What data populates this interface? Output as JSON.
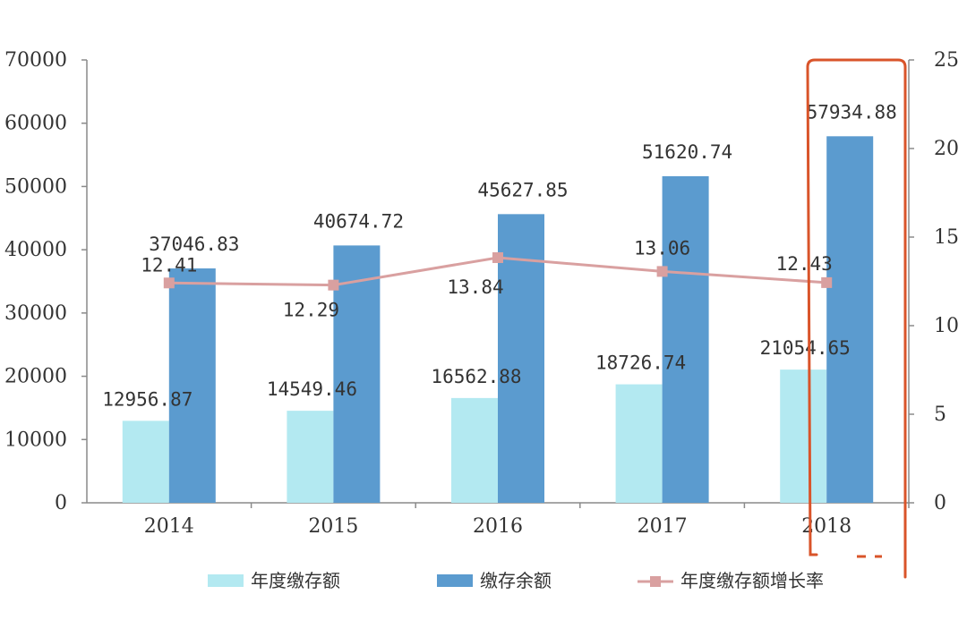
{
  "chart_data": {
    "type": "bar",
    "categories": [
      "2014",
      "2015",
      "2016",
      "2017",
      "2018"
    ],
    "series": [
      {
        "name": "年度缴存额",
        "type": "bar",
        "axis": "left",
        "values": [
          12956.87,
          14549.46,
          16562.88,
          18726.74,
          21054.65
        ],
        "labels": [
          "12956.87",
          "14549.46",
          "16562.88",
          "18726.74",
          "21054.65"
        ],
        "color": "#b3e9f1"
      },
      {
        "name": "缴存余额",
        "type": "bar",
        "axis": "left",
        "values": [
          37046.83,
          40674.72,
          45627.85,
          51620.74,
          57934.88
        ],
        "labels": [
          "37046.83",
          "40674.72",
          "45627.85",
          "51620.74",
          "57934.88"
        ],
        "color": "#5b9bcf"
      },
      {
        "name": "年度缴存额增长率",
        "type": "line",
        "axis": "right",
        "values": [
          12.41,
          12.29,
          13.84,
          13.06,
          12.43
        ],
        "labels": [
          "12.41",
          "12.29",
          "13.84",
          "13.06",
          "12.43"
        ],
        "color": "#d9a0a0"
      }
    ],
    "y_left": {
      "range": [
        0,
        70000
      ],
      "ticks": [
        "0",
        "10000",
        "20000",
        "30000",
        "40000",
        "50000",
        "60000",
        "70000"
      ]
    },
    "y_right": {
      "range": [
        0,
        25
      ],
      "ticks": [
        "0",
        "5",
        "10",
        "15",
        "20",
        "25"
      ]
    },
    "highlight": {
      "category": "2018",
      "color": "#d9542a"
    },
    "legend": "bottom",
    "grid": false
  }
}
